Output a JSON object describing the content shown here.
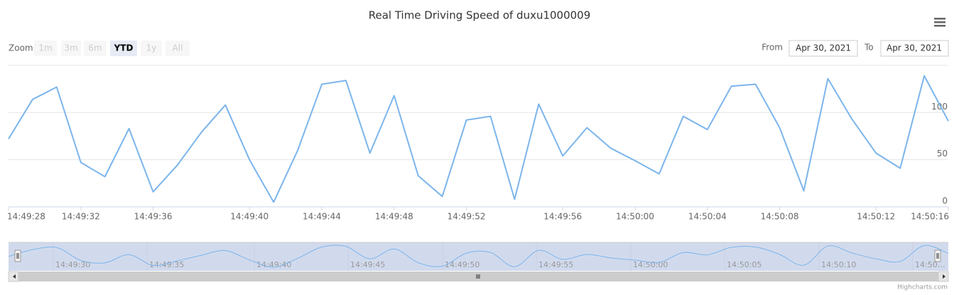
{
  "chart_data": {
    "type": "line",
    "title": "Real Time Driving Speed of duxu1000009",
    "categories": [
      "14:49:28",
      null,
      null,
      "14:49:32",
      null,
      null,
      "14:49:36",
      null,
      null,
      null,
      "14:49:40",
      null,
      null,
      "14:49:44",
      null,
      null,
      "14:49:48",
      null,
      null,
      "14:49:52",
      null,
      null,
      null,
      "14:49:56",
      null,
      null,
      "14:50:00",
      null,
      null,
      "14:50:04",
      null,
      null,
      "14:50:08",
      null,
      null,
      null,
      "14:50:12",
      null,
      null,
      "14:50:16"
    ],
    "values": [
      72,
      114,
      127,
      47,
      32,
      83,
      16,
      44,
      79,
      108,
      50,
      5,
      60,
      130,
      134,
      57,
      118,
      33,
      11,
      92,
      96,
      8,
      109,
      54,
      84,
      62,
      49,
      35,
      96,
      82,
      128,
      130,
      84,
      17,
      136,
      93,
      57,
      41,
      139,
      91
    ],
    "color": "#7cb5ec",
    "ylim": [
      0,
      150
    ],
    "yticks": [
      0,
      50,
      100
    ],
    "grid": true,
    "range_selector": {
      "label": "Zoom",
      "buttons": [
        "1m",
        "3m",
        "6m",
        "YTD",
        "1y",
        "All"
      ],
      "selected": 3,
      "from_label": "From",
      "from": "Apr 30, 2021",
      "to_label": "To",
      "to": "Apr 30, 2021"
    },
    "navigator": {
      "labels": [
        "14:49:30",
        "14:49:35",
        "14:49:40",
        "14:49:45",
        "14:49:50",
        "14:49:55",
        "14:50:00",
        "14:50:05",
        "14:50:10",
        "14:50…"
      ]
    },
    "credits": "Highcharts.com"
  }
}
